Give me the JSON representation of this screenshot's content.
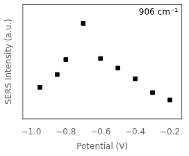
{
  "chart_data": {
    "type": "scatter",
    "x": [
      -0.95,
      -0.85,
      -0.8,
      -0.7,
      -0.6,
      -0.5,
      -0.4,
      -0.3,
      -0.2
    ],
    "values": [
      0.3,
      0.42,
      0.56,
      0.9,
      0.57,
      0.48,
      0.38,
      0.25,
      0.18
    ],
    "xlabel": "Potential (V)",
    "ylabel": "SERS Intensity (a.u.)",
    "annotation": "906 cm⁻¹",
    "xlim": [
      -1.05,
      -0.13
    ],
    "ylim": [
      0.0,
      1.08
    ],
    "xticks": [
      {
        "value": -1.0,
        "label": "−1.0"
      },
      {
        "value": -0.8,
        "label": "−0.8"
      },
      {
        "value": -0.6,
        "label": "−0.6"
      },
      {
        "value": -0.4,
        "label": "−0.4"
      },
      {
        "value": -0.2,
        "label": "−0.2"
      }
    ],
    "yticks": [],
    "tick_labels": "x",
    "grid": false,
    "marker": "square",
    "color": "black"
  }
}
